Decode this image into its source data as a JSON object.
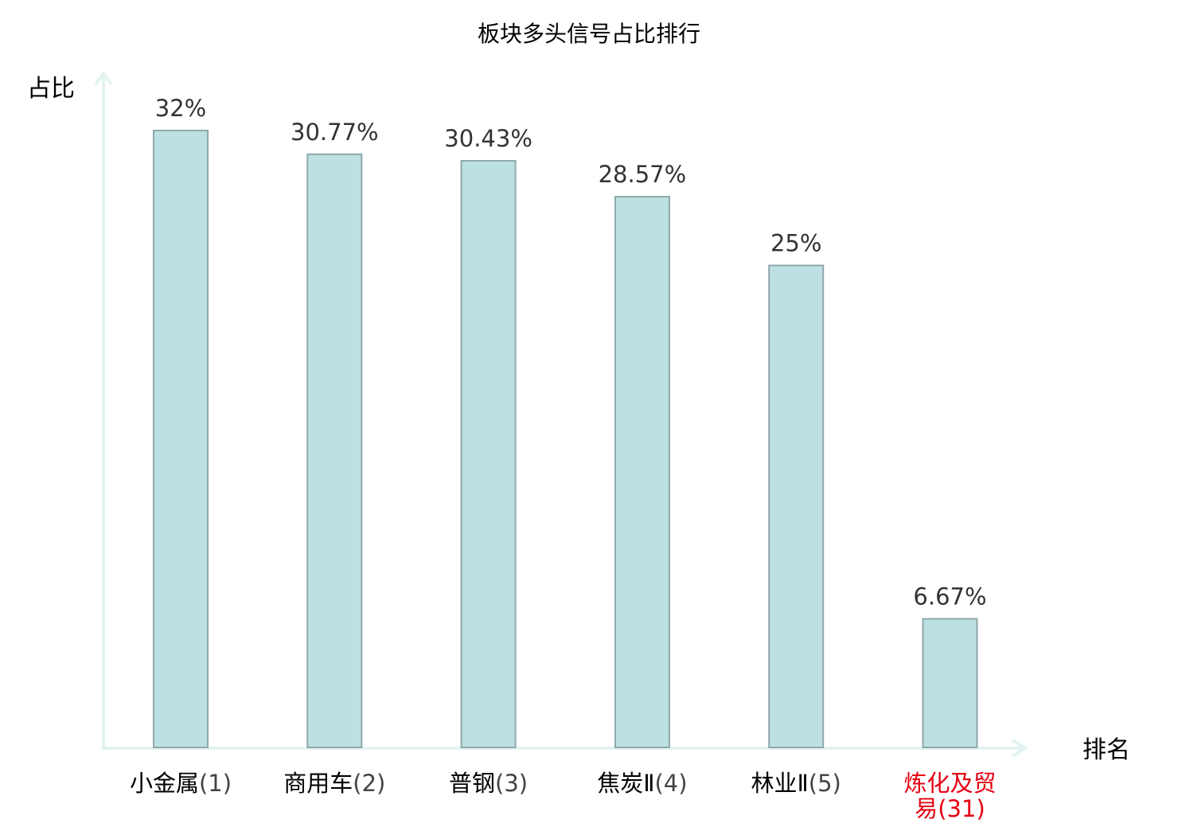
{
  "chart_data": {
    "type": "bar",
    "title": "板块多头信号占比排行",
    "ylabel": "占比",
    "xlabel": "排名",
    "ylim": [
      0,
      32
    ],
    "grid": false,
    "categories": [
      {
        "name": "小金属",
        "rank": "(1)"
      },
      {
        "name": "商用车",
        "rank": "(2)"
      },
      {
        "name": "普钢",
        "rank": "(3)"
      },
      {
        "name": "焦炭Ⅱ",
        "rank": "(4)"
      },
      {
        "name": "林业Ⅱ",
        "rank": "(5)"
      },
      {
        "name": "炼化及贸易",
        "rank": "(31)"
      }
    ],
    "values": [
      32,
      30.77,
      30.43,
      28.57,
      25,
      6.67
    ],
    "value_labels": [
      "32%",
      "30.77%",
      "30.43%",
      "28.57%",
      "25%",
      "6.67%"
    ],
    "highlight_index": 5,
    "colors": {
      "bar_fill": "#bde0e3",
      "bar_stroke": "#8fa8aa",
      "axis": "#e3f3f1",
      "highlight_text": "#e60012",
      "rank_text": "#444444"
    }
  }
}
